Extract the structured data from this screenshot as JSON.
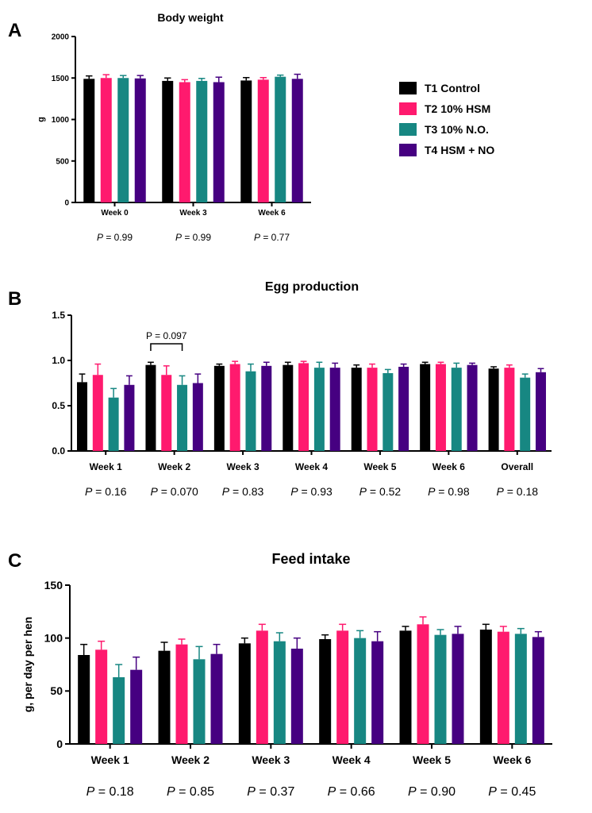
{
  "colors": {
    "T1": "#000000",
    "T2": "#ff1a6e",
    "T3": "#178782",
    "T4": "#460081"
  },
  "legend": [
    {
      "label": "T1 Control",
      "color": "#000000"
    },
    {
      "label": "T2 10% HSM",
      "color": "#ff1a6e"
    },
    {
      "label": "T3 10% N.O.",
      "color": "#178782"
    },
    {
      "label": "T4 HSM + NO",
      "color": "#460081"
    }
  ],
  "chart_data": [
    {
      "panel": "A",
      "type": "bar",
      "title": "Body weight",
      "ylabel": "g",
      "ylim": [
        0,
        2000
      ],
      "yticks": [
        0,
        500,
        1000,
        1500,
        2000
      ],
      "categories": [
        "Week 0",
        "Week 3",
        "Week 6"
      ],
      "series": [
        {
          "name": "T1 Control",
          "values": [
            1490,
            1465,
            1470
          ],
          "errors": [
            35,
            35,
            35
          ]
        },
        {
          "name": "T2 10% HSM",
          "values": [
            1500,
            1450,
            1480
          ],
          "errors": [
            40,
            30,
            25
          ]
        },
        {
          "name": "T3 10% N.O.",
          "values": [
            1500,
            1465,
            1515
          ],
          "errors": [
            30,
            30,
            20
          ]
        },
        {
          "name": "T4 HSM + NO",
          "values": [
            1495,
            1450,
            1490
          ],
          "errors": [
            35,
            60,
            55
          ]
        }
      ],
      "pvalues": [
        "0.99",
        "0.99",
        "0.77"
      ]
    },
    {
      "panel": "B",
      "type": "bar",
      "title": "Egg production",
      "ylabel": "",
      "ylim": [
        0,
        1.5
      ],
      "yticks": [
        "0.0",
        "0.5",
        "1.0",
        "1.5"
      ],
      "categories": [
        "Week 1",
        "Week 2",
        "Week 3",
        "Week 4",
        "Week 5",
        "Week 6",
        "Overall"
      ],
      "series": [
        {
          "name": "T1 Control",
          "values": [
            0.76,
            0.95,
            0.94,
            0.95,
            0.92,
            0.96,
            0.91
          ],
          "errors": [
            0.09,
            0.03,
            0.02,
            0.03,
            0.03,
            0.02,
            0.02
          ]
        },
        {
          "name": "T2 10% HSM",
          "values": [
            0.84,
            0.84,
            0.96,
            0.97,
            0.92,
            0.96,
            0.92
          ],
          "errors": [
            0.12,
            0.1,
            0.03,
            0.02,
            0.04,
            0.02,
            0.03
          ]
        },
        {
          "name": "T3 10% N.O.",
          "values": [
            0.59,
            0.73,
            0.88,
            0.92,
            0.86,
            0.92,
            0.81
          ],
          "errors": [
            0.1,
            0.1,
            0.08,
            0.06,
            0.04,
            0.05,
            0.04
          ]
        },
        {
          "name": "T4 HSM + NO",
          "values": [
            0.73,
            0.75,
            0.94,
            0.92,
            0.93,
            0.95,
            0.87
          ],
          "errors": [
            0.1,
            0.1,
            0.04,
            0.05,
            0.03,
            0.02,
            0.04
          ]
        }
      ],
      "annotation": {
        "text": "P = 0.097",
        "from_category": 1,
        "bracket_series": [
          0,
          2
        ]
      },
      "pvalues": [
        "0.16",
        "0.070",
        "0.83",
        "0.93",
        "0.52",
        "0.98",
        "0.18"
      ]
    },
    {
      "panel": "C",
      "type": "bar",
      "title": "Feed intake",
      "ylabel": "g, per day per hen",
      "ylim": [
        0,
        150
      ],
      "yticks": [
        0,
        50,
        100,
        150
      ],
      "categories": [
        "Week 1",
        "Week 2",
        "Week 3",
        "Week 4",
        "Week 5",
        "Week 6"
      ],
      "series": [
        {
          "name": "T1 Control",
          "values": [
            84,
            88,
            95,
            99,
            107,
            108
          ],
          "errors": [
            10,
            8,
            5,
            4,
            4,
            5
          ]
        },
        {
          "name": "T2 10% HSM",
          "values": [
            89,
            94,
            107,
            107,
            113,
            106
          ],
          "errors": [
            8,
            5,
            6,
            6,
            7,
            5
          ]
        },
        {
          "name": "T3 10% N.O.",
          "values": [
            63,
            80,
            97,
            100,
            103,
            104
          ],
          "errors": [
            12,
            12,
            8,
            7,
            5,
            5
          ]
        },
        {
          "name": "T4 HSM + NO",
          "values": [
            70,
            85,
            90,
            97,
            104,
            101
          ],
          "errors": [
            12,
            9,
            10,
            9,
            7,
            5
          ]
        }
      ],
      "pvalues": [
        "0.18",
        "0.85",
        "0.37",
        "0.66",
        "0.90",
        "0.45"
      ]
    }
  ]
}
